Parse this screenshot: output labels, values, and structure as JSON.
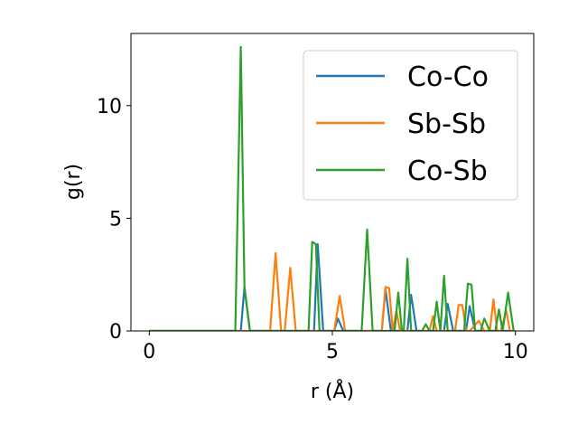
{
  "chart_data": {
    "type": "line",
    "title": "",
    "xlabel": "r (Å)",
    "ylabel": "g(r)",
    "xlim": [
      -0.5,
      10.5
    ],
    "ylim": [
      0,
      13.2
    ],
    "xticks": [
      {
        "value": 0,
        "label": "0"
      },
      {
        "value": 5,
        "label": "5"
      },
      {
        "value": 10,
        "label": "10"
      }
    ],
    "yticks": [
      {
        "value": 0,
        "label": "0"
      },
      {
        "value": 5,
        "label": "5"
      },
      {
        "value": 10,
        "label": "10"
      }
    ],
    "grid": false,
    "legend_position": "top-right",
    "series": [
      {
        "name": "Co-Co",
        "color": "#1f77b4",
        "x": [
          0,
          2.5,
          2.6,
          2.75,
          4.5,
          4.6,
          4.75,
          5.05,
          5.15,
          5.3,
          6.35,
          6.45,
          6.6,
          7.05,
          7.15,
          7.3,
          8.05,
          8.15,
          8.3,
          8.65,
          8.75,
          8.9,
          9.95
        ],
        "y": [
          0,
          0,
          1.95,
          0,
          0,
          3.85,
          0,
          0,
          0.55,
          0,
          0,
          1.85,
          0,
          0,
          1.6,
          0,
          0,
          1.2,
          0,
          0,
          1.1,
          0,
          0
        ]
      },
      {
        "name": "Sb-Sb",
        "color": "#ff7f0e",
        "x": [
          0,
          3.3,
          3.45,
          3.6,
          3.7,
          3.85,
          4.0,
          5.05,
          5.2,
          5.35,
          6.35,
          6.45,
          6.55,
          6.65,
          6.75,
          6.85,
          7.65,
          7.75,
          7.85,
          8.35,
          8.45,
          8.55,
          8.65,
          8.75,
          9.0,
          9.15,
          9.3,
          9.4,
          9.5,
          9.6,
          9.75,
          9.85,
          9.95
        ],
        "y": [
          0,
          0,
          3.45,
          0,
          0,
          2.8,
          0,
          0,
          1.55,
          0,
          0,
          1.95,
          1.9,
          0,
          0.9,
          0,
          0,
          0.65,
          0,
          0,
          1.15,
          1.15,
          0,
          0,
          0.45,
          0,
          0,
          1.4,
          0,
          0,
          0.9,
          0,
          0
        ]
      },
      {
        "name": "Co-Sb",
        "color": "#2ca02c",
        "x": [
          0,
          2.35,
          2.5,
          2.6,
          2.75,
          4.35,
          4.45,
          4.55,
          4.65,
          5.8,
          5.95,
          6.1,
          6.7,
          6.8,
          6.9,
          6.95,
          7.05,
          7.15,
          7.45,
          7.55,
          7.65,
          7.75,
          7.85,
          7.95,
          8.05,
          8.15,
          8.25,
          8.6,
          8.7,
          8.8,
          8.9,
          9.05,
          9.15,
          9.3,
          9.45,
          9.55,
          9.65,
          9.8,
          9.95
        ],
        "y": [
          0,
          0,
          12.6,
          1.9,
          0,
          0,
          3.95,
          3.85,
          0,
          0,
          4.5,
          0,
          0,
          1.7,
          0,
          0,
          3.2,
          0,
          0,
          0.3,
          0,
          0,
          1.3,
          0,
          2.45,
          0,
          0,
          0,
          2.1,
          2.05,
          0,
          0,
          0.55,
          0,
          0,
          0.95,
          0,
          1.7,
          0
        ]
      }
    ]
  }
}
